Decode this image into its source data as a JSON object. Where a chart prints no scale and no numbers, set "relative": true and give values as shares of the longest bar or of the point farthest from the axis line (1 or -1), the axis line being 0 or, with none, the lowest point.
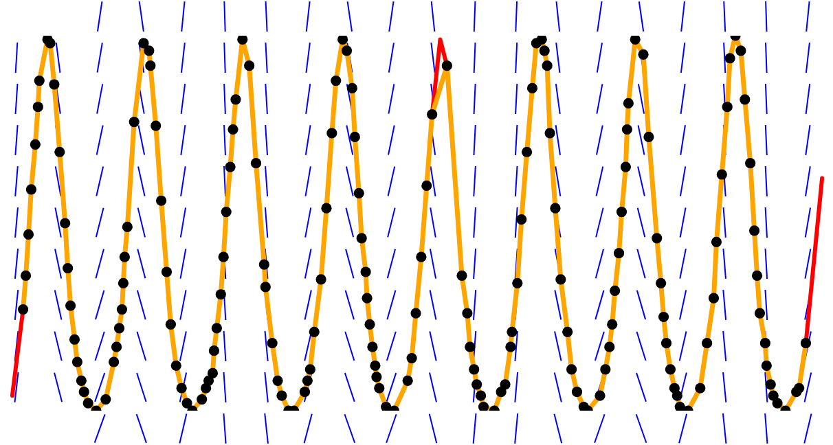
{
  "chart_data": {
    "type": "line",
    "relative": true,
    "categories": [
      null,
      null,
      null,
      null,
      null,
      null,
      null,
      null,
      null,
      null,
      null,
      null,
      null,
      null,
      null,
      null,
      null,
      null,
      null,
      null,
      null,
      null,
      null,
      null,
      null,
      null,
      null,
      null,
      null,
      null,
      null,
      null,
      null,
      null,
      null,
      null,
      null,
      null,
      null,
      null,
      null,
      null,
      null,
      null,
      null,
      null,
      null,
      null,
      null,
      null,
      null,
      null,
      null,
      null,
      null,
      null,
      null,
      null,
      null,
      null,
      null,
      null,
      null,
      null,
      null,
      null,
      null,
      null,
      null,
      null,
      null,
      null,
      null,
      null,
      null,
      null,
      null,
      null,
      null,
      null,
      null,
      null,
      null,
      null,
      null,
      null,
      null,
      null,
      null,
      null,
      null,
      null,
      null,
      null,
      null,
      null,
      null,
      null,
      null,
      null,
      null,
      null,
      null,
      null,
      null,
      null,
      null,
      null,
      null,
      null,
      null,
      null,
      null,
      null,
      null,
      null,
      null,
      null,
      null,
      null,
      null,
      null,
      null,
      null,
      null,
      null,
      null,
      null,
      null,
      null,
      null,
      null,
      null,
      null,
      null,
      null,
      null,
      null,
      null,
      null,
      null,
      null,
      null,
      null,
      null,
      null,
      null,
      null,
      null,
      null,
      null,
      null,
      null,
      null,
      null,
      null,
      null,
      null,
      null,
      null,
      null,
      null,
      null,
      null,
      null,
      null,
      null,
      null,
      null,
      null,
      null,
      null,
      null,
      null,
      null,
      null,
      null,
      null,
      null,
      null,
      null,
      null,
      null,
      null,
      null,
      null,
      null,
      null,
      null,
      null,
      null,
      null,
      null,
      null,
      null,
      null,
      null,
      null,
      null,
      null,
      null,
      null,
      null,
      null,
      null,
      null,
      null,
      null,
      null,
      null,
      null,
      null,
      null,
      null,
      null,
      null,
      null,
      null,
      null,
      null,
      null,
      null,
      null,
      null,
      null,
      null,
      null,
      null,
      null,
      null,
      null,
      null,
      null,
      null,
      null,
      null,
      null,
      null,
      null,
      null,
      null,
      null,
      null,
      null,
      null,
      null,
      null,
      null,
      null,
      null,
      null,
      null,
      null,
      null,
      null,
      null,
      null,
      null,
      null,
      null,
      null,
      null,
      null,
      null,
      null,
      null,
      null,
      null,
      null,
      null,
      null,
      null,
      null,
      null,
      null,
      null,
      null,
      null,
      null,
      null,
      null,
      null,
      null,
      null,
      null,
      null,
      null,
      null,
      null,
      null,
      null,
      null,
      null,
      null,
      null,
      null,
      null,
      null,
      null,
      null,
      null,
      null,
      null,
      null,
      null,
      null,
      null,
      null,
      null,
      null,
      null,
      null,
      null,
      null,
      null,
      null,
      null,
      null,
      null,
      null,
      null,
      null,
      null,
      null,
      null,
      null,
      null,
      null,
      null,
      null,
      null,
      null,
      null,
      null,
      null,
      null,
      null,
      null,
      null,
      null,
      null,
      null,
      null,
      null,
      null,
      null,
      null,
      null,
      null,
      null,
      null,
      null,
      null,
      null,
      null,
      null,
      null,
      null,
      null,
      null,
      null,
      null,
      null,
      null,
      null,
      null,
      null,
      null,
      null,
      null,
      null,
      null,
      null,
      null,
      null,
      null,
      null,
      null,
      null,
      null,
      null,
      null,
      null,
      null,
      null,
      null,
      null,
      null,
      null,
      null,
      null,
      null,
      null,
      null,
      null,
      null,
      null,
      null,
      null,
      null,
      null,
      null,
      null,
      null,
      null,
      null,
      null,
      null,
      null,
      null,
      null,
      null,
      null,
      null,
      null,
      null,
      null,
      null,
      null,
      null,
      null,
      null,
      null,
      null,
      null,
      null,
      null,
      null,
      null,
      null,
      null,
      null,
      null,
      null,
      null,
      null,
      null,
      null,
      null,
      null,
      null,
      null,
      null,
      null,
      null,
      null,
      null,
      null,
      null,
      null,
      null,
      null,
      null,
      null,
      null,
      null,
      null,
      null,
      null,
      null,
      null,
      null,
      null,
      null,
      null,
      null,
      null,
      null,
      null,
      null,
      null,
      null,
      null,
      null,
      null,
      null,
      null,
      null,
      null,
      null,
      null,
      null,
      null,
      null,
      null,
      null,
      null,
      null,
      null,
      null,
      null,
      null,
      null,
      null,
      null,
      null,
      null,
      null,
      null,
      null,
      null,
      null,
      null,
      null,
      null,
      null,
      null,
      null,
      null,
      null,
      null,
      null,
      null,
      null,
      null,
      null,
      null,
      null,
      null,
      null,
      null,
      null,
      null,
      null,
      null,
      null,
      null,
      null,
      null,
      null,
      null,
      null,
      null,
      null,
      null,
      null,
      null,
      null,
      null,
      null,
      null,
      null,
      null,
      null,
      null,
      null,
      null,
      null,
      null,
      null,
      null,
      null,
      null,
      null,
      null,
      null,
      null,
      null,
      null,
      null,
      null,
      null,
      null,
      null,
      null,
      null,
      null,
      null,
      null,
      null,
      null,
      null,
      null,
      null,
      null,
      null,
      null,
      null,
      null,
      null,
      null,
      null,
      null,
      null,
      null,
      null,
      null,
      null,
      null,
      null,
      null,
      null,
      null,
      null,
      null,
      null,
      null,
      null,
      null,
      null,
      null,
      null,
      null,
      null,
      null,
      null,
      null,
      null
    ],
    "series": [
      {
        "type": "line",
        "color": "#ff0000",
        "values": [
          null,
          null,
          null,
          null,
          null,
          0.04,
          null,
          null,
          null,
          null,
          null,
          null,
          null,
          0.27,
          null,
          null,
          null,
          null,
          null,
          null,
          null,
          null,
          null,
          null,
          null,
          null,
          null,
          null,
          null,
          null,
          null,
          null,
          null,
          null,
          null,
          null,
          null,
          null,
          null,
          null,
          null,
          null,
          null,
          null,
          null,
          null,
          null,
          null,
          null,
          null,
          null,
          null,
          null,
          null,
          null,
          null,
          null,
          null,
          null,
          null,
          null,
          null,
          null,
          null,
          null,
          null,
          null,
          null,
          null,
          null,
          null,
          null,
          null,
          null,
          null,
          null,
          null,
          null,
          null,
          null,
          null,
          null,
          null,
          null,
          null,
          null,
          null,
          null,
          null,
          null,
          null,
          null,
          null,
          null,
          null,
          null,
          null,
          null,
          null,
          null,
          null,
          null,
          null,
          null,
          null,
          null,
          null,
          null,
          null,
          null,
          null,
          null,
          null,
          null,
          null,
          null,
          null,
          null,
          null,
          null,
          null,
          null,
          null,
          null,
          null,
          null,
          null,
          null,
          null,
          null,
          null,
          null,
          null,
          null,
          null,
          null,
          null,
          null,
          null,
          null,
          null,
          null,
          null,
          null,
          null,
          null,
          null,
          null,
          null,
          null,
          null,
          null,
          null,
          null,
          null,
          null,
          null,
          null,
          null,
          null,
          null,
          null,
          null,
          null,
          null,
          null,
          null,
          null,
          null,
          null,
          null,
          null,
          null,
          null,
          null,
          null,
          null,
          null,
          null,
          null,
          null,
          null,
          null,
          null,
          null,
          null,
          null,
          null,
          null,
          null,
          null,
          null,
          null,
          null,
          null,
          null,
          null,
          null,
          null,
          null,
          null,
          null,
          null,
          null,
          null,
          null,
          null,
          null,
          null,
          null,
          null,
          null,
          null,
          null,
          null,
          null,
          null,
          null,
          null,
          null,
          null,
          null,
          null,
          null,
          null,
          null,
          null,
          null,
          null,
          null,
          null,
          null,
          null,
          null,
          null,
          null,
          null,
          null,
          null,
          null,
          null,
          null,
          null,
          null,
          null,
          null,
          null,
          null,
          null,
          null,
          null,
          null,
          null,
          null,
          null,
          null,
          null,
          null,
          null,
          null,
          null,
          null,
          null,
          null,
          null,
          null,
          null,
          null,
          null,
          null,
          null,
          null,
          null,
          null,
          null,
          null,
          null,
          null,
          null,
          null,
          null,
          null,
          null,
          null,
          null,
          null,
          null,
          null,
          null,
          null,
          null,
          null,
          null,
          null,
          null,
          null,
          null,
          null,
          null,
          null,
          null,
          null,
          null,
          null,
          null,
          null,
          null,
          null,
          null,
          null,
          null,
          null,
          null,
          null,
          null,
          0.79,
          null,
          null,
          null,
          null,
          null,
          0.99,
          null,
          null,
          null,
          null,
          0.92,
          null,
          null,
          null,
          null,
          null,
          null,
          null,
          null,
          null,
          null,
          null,
          null,
          null,
          null,
          null,
          null,
          null,
          null,
          null,
          null,
          null,
          null,
          null,
          null,
          null,
          null,
          null,
          null,
          null,
          null,
          null,
          null,
          null,
          null,
          null,
          null,
          null,
          null,
          null,
          null,
          null,
          null,
          null,
          null,
          null,
          null,
          null,
          null,
          null,
          null,
          null,
          null,
          null,
          null,
          null,
          null,
          null,
          null,
          null,
          null,
          null,
          null,
          null,
          null,
          null,
          null,
          null,
          null,
          null,
          null,
          null,
          null,
          null,
          null,
          null,
          null,
          null,
          null,
          null,
          null,
          null,
          null,
          null,
          null,
          null,
          null,
          null,
          null,
          null,
          null,
          null,
          null,
          null,
          null,
          null,
          null,
          null,
          null,
          null,
          null,
          null,
          null,
          null,
          null,
          null,
          null,
          null,
          null,
          null,
          null,
          null,
          null,
          null,
          null,
          null,
          null,
          null,
          null,
          null,
          null,
          null,
          null,
          null,
          null,
          null,
          null,
          null,
          null,
          null,
          null,
          null,
          null,
          null,
          null,
          null,
          null,
          null,
          null,
          null,
          null,
          null,
          null,
          null,
          null,
          null,
          null,
          null,
          null,
          null,
          null,
          null,
          null,
          null,
          null,
          null,
          null,
          null,
          null,
          null,
          null,
          null,
          null,
          null,
          null,
          null,
          null,
          null,
          null,
          null,
          null,
          null,
          null,
          null,
          null,
          null,
          null,
          null,
          null,
          null,
          null,
          null,
          null,
          null,
          null,
          null,
          null,
          null,
          null,
          null,
          null,
          null,
          null,
          null,
          null,
          null,
          null,
          null,
          null,
          null,
          null,
          null,
          null,
          null,
          null,
          null,
          null,
          null,
          null,
          null,
          null,
          null,
          null,
          null,
          null,
          null,
          null,
          null,
          null,
          null,
          null,
          null,
          null,
          null,
          null,
          null,
          null,
          null,
          null,
          null,
          null,
          null,
          null,
          null,
          null,
          null,
          null,
          null,
          null,
          null,
          null,
          null,
          null,
          null,
          null,
          null,
          null,
          null,
          null,
          null,
          null,
          null,
          null,
          null,
          null,
          null,
          null,
          null,
          null,
          null,
          null,
          null,
          null,
          null,
          null,
          0.18,
          null,
          null,
          null,
          null,
          null,
          0.4,
          null,
          null,
          null,
          null,
          null,
          0.62,
          null,
          null,
          null,
          null
        ]
      },
      {
        "type": "line",
        "color": "#ffa500",
        "marker": "circle",
        "values": [
          null,
          null,
          null,
          null,
          null,
          null,
          null,
          null,
          null,
          null,
          null,
          null,
          null,
          0.27,
          null,
          0.36,
          null,
          0.47,
          null,
          0.59,
          null,
          null,
          0.71,
          null,
          0.81,
          0.88,
          null,
          null,
          null,
          null,
          null,
          0.99,
          null,
          0.98,
          null,
          null,
          0.87,
          null,
          null,
          null,
          0.69,
          null,
          null,
          null,
          0.5,
          null,
          0.38,
          null,
          0.28,
          null,
          null,
          0.19,
          null,
          0.13,
          null,
          null,
          0.08,
          null,
          0.05,
          null,
          null,
          0.02,
          null,
          null,
          null,
          null,
          null,
          0,
          null,
          null,
          null,
          null,
          null,
          null,
          0.03,
          null,
          null,
          null,
          null,
          null,
          0.13,
          null,
          0.17,
          null,
          0.22,
          null,
          0.27,
          0.34,
          0.41,
          null,
          0.49,
          null,
          null,
          null,
          null,
          0.77,
          null,
          null,
          null,
          null,
          null,
          null,
          0.98,
          null,
          null,
          null,
          0.96,
          0.92,
          null,
          null,
          null,
          0.76,
          null,
          null,
          null,
          0.56,
          null,
          null,
          null,
          0.37,
          null,
          null,
          0.23,
          null,
          null,
          null,
          0.12,
          null,
          null,
          null,
          0.06,
          null,
          null,
          null,
          0.02,
          null,
          null,
          null,
          0,
          null,
          null,
          null,
          null,
          null,
          null,
          0.03,
          null,
          null,
          0.06,
          null,
          0.08,
          null,
          null,
          0.1,
          0.16,
          null,
          0.22,
          null,
          null,
          0.31,
          null,
          0.41,
          null,
          0.53,
          null,
          null,
          0.65,
          null,
          0.75,
          null,
          0.83,
          null,
          null,
          null,
          null,
          0.99,
          null,
          null,
          null,
          null,
          0.92,
          null,
          null,
          null,
          null,
          0.66,
          null,
          null,
          null,
          null,
          null,
          0.39,
          0.33,
          null,
          null,
          null,
          null,
          0.18,
          null,
          null,
          null,
          0.08,
          null,
          null,
          0.04,
          null,
          null,
          null,
          null,
          0,
          null,
          null,
          null,
          0,
          null,
          null,
          null,
          null,
          null,
          null,
          null,
          0.05,
          null,
          0.08,
          null,
          0.11,
          null,
          null,
          0.21,
          null,
          null,
          null,
          null,
          0.35,
          null,
          null,
          null,
          0.54,
          null,
          null,
          null,
          0.74,
          null,
          null,
          0.88,
          null,
          null,
          null,
          null,
          0.99,
          null,
          null,
          0.96,
          null,
          null,
          null,
          0.86,
          null,
          0.73,
          null,
          null,
          0.58,
          null,
          0.46,
          null,
          null,
          0.37,
          0.3,
          null,
          0.23,
          null,
          0.17,
          null,
          0.12,
          0.09,
          null,
          0.06,
          null,
          null,
          null,
          null,
          0.01,
          null,
          null,
          null,
          null,
          null,
          0,
          null,
          null,
          null,
          null,
          null,
          null,
          null,
          null,
          null,
          0.08,
          null,
          null,
          0.14,
          null,
          null,
          0.26,
          null,
          null,
          null,
          0.41,
          null,
          null,
          null,
          0.6,
          null,
          null,
          null,
          0.79,
          null,
          null,
          null,
          null,
          null,
          null,
          null,
          null,
          null,
          null,
          0.92,
          null,
          null,
          null,
          null,
          null,
          null,
          null,
          null,
          null,
          null,
          0.36,
          null,
          null,
          null,
          0.26,
          null,
          0.17,
          null,
          null,
          0.11,
          null,
          0.07,
          null,
          null,
          0.04,
          null,
          0.01,
          null,
          null,
          null,
          null,
          null,
          null,
          null,
          0,
          null,
          null,
          null,
          null,
          0.05,
          null,
          null,
          0.07,
          null,
          null,
          null,
          0.17,
          0.21,
          null,
          null,
          null,
          0.34,
          null,
          null,
          0.51,
          null,
          null,
          null,
          0.69,
          null,
          null,
          null,
          0.86,
          null,
          null,
          0.98,
          null,
          null,
          null,
          0.99,
          null,
          0.96,
          null,
          0.92,
          null,
          0.74,
          null,
          null,
          null,
          0.54,
          null,
          null,
          null,
          0.35,
          null,
          null,
          null,
          null,
          0.21,
          null,
          null,
          0.11,
          null,
          null,
          null,
          0.05,
          null,
          null,
          null,
          null,
          0.01,
          null,
          null,
          0,
          null,
          null,
          null,
          null,
          null,
          null,
          null,
          null,
          0.04,
          null,
          null,
          null,
          0.11,
          null,
          null,
          0.17,
          null,
          0.23,
          null,
          0.32,
          null,
          null,
          0.42,
          null,
          0.53,
          null,
          null,
          0.65,
          0.75,
          0.82,
          null,
          null,
          null,
          null,
          0.99,
          null,
          null,
          null,
          null,
          null,
          0.95,
          null,
          null,
          null,
          0.73,
          null,
          null,
          null,
          null,
          null,
          0.46,
          null,
          null,
          0.34,
          null,
          0.25,
          null,
          0.18,
          null,
          null,
          0.11,
          null,
          null,
          0.06,
          null,
          0.04,
          null,
          0.01,
          null,
          null,
          null,
          null,
          null,
          0,
          null,
          null,
          null,
          null,
          null,
          null,
          null,
          null,
          0.06,
          null,
          null,
          null,
          null,
          0.18,
          null,
          null,
          null,
          null,
          0.3,
          null,
          0.45,
          null,
          null,
          null,
          0.63,
          null,
          null,
          null,
          0.81,
          null,
          0.94,
          null,
          null,
          null,
          1,
          null,
          null,
          null,
          0.96,
          null,
          null,
          0.83,
          null,
          null,
          null,
          0.66,
          null,
          null,
          0.48,
          null,
          0.36,
          null,
          0.26,
          null,
          null,
          null,
          0.18,
          0.12,
          null,
          null,
          0.07,
          null,
          0.04,
          null,
          null,
          0.02,
          null,
          null,
          null,
          null,
          null,
          0,
          null,
          null,
          null,
          null,
          null,
          null,
          null,
          0.05,
          null,
          0.06,
          null,
          null,
          null,
          null,
          0.18,
          null,
          null,
          null,
          null,
          null,
          null,
          null,
          null,
          null,
          null,
          null,
          null,
          null,
          null,
          null,
          null
        ],
        "colors": [
          null,
          null,
          null,
          null,
          null,
          null,
          null,
          null,
          null,
          null,
          null,
          null,
          null,
          "#000000",
          null,
          "#000000",
          null,
          "#000000",
          null,
          "#000000",
          null,
          null,
          "#000000",
          null,
          "#000000",
          "#000000",
          null,
          null,
          null,
          null,
          null,
          "#000000",
          null,
          "#000000",
          null,
          null,
          "#000000",
          null,
          null,
          null,
          "#000000",
          null,
          null,
          null,
          "#000000",
          null,
          "#000000",
          null,
          "#000000",
          null,
          null,
          "#000000",
          null,
          "#000000",
          null,
          null,
          "#000000",
          null,
          "#000000",
          null,
          null,
          "#000000",
          null,
          null,
          null,
          null,
          null,
          "#000000",
          null,
          null,
          null,
          null,
          null,
          null,
          "#000000",
          null,
          null,
          null,
          null,
          null,
          "#000000",
          null,
          "#000000",
          null,
          "#000000",
          null,
          "#000000",
          "#000000",
          "#000000",
          null,
          "#000000",
          null,
          null,
          null,
          null,
          "#000000",
          null,
          null,
          null,
          null,
          null,
          null,
          "#000000",
          null,
          null,
          null,
          "#000000",
          "#000000",
          null,
          null,
          null,
          "#000000",
          null,
          null,
          null,
          "#000000",
          null,
          null,
          null,
          "#000000",
          null,
          null,
          "#000000",
          null,
          null,
          null,
          "#000000",
          null,
          null,
          null,
          "#000000",
          null,
          null,
          null,
          "#000000",
          null,
          null,
          null,
          "#000000",
          null,
          null,
          null,
          null,
          null,
          null,
          "#000000",
          null,
          null,
          "#000000",
          null,
          "#000000",
          null,
          null,
          "#000000",
          "#000000",
          null,
          "#000000",
          null,
          null,
          "#000000",
          null,
          "#000000",
          null,
          "#000000",
          null,
          null,
          "#000000",
          null,
          "#000000",
          null,
          "#000000",
          null,
          null,
          null,
          null,
          "#000000",
          null,
          null,
          null,
          null,
          "#000000",
          null,
          null,
          null,
          null,
          "#000000",
          null,
          null,
          null,
          null,
          null,
          "#000000",
          "#000000",
          null,
          null,
          null,
          null,
          "#000000",
          null,
          null,
          null,
          "#000000",
          null,
          null,
          "#000000",
          null,
          null,
          null,
          null,
          "#000000",
          null,
          null,
          null,
          "#000000",
          null,
          null,
          null,
          null,
          null,
          null,
          null,
          "#000000",
          null,
          "#000000",
          null,
          "#000000",
          null,
          null,
          "#000000",
          null,
          null,
          null,
          null,
          "#000000",
          null,
          null,
          null,
          "#000000",
          null,
          null,
          null,
          "#000000",
          null,
          null,
          "#000000",
          null,
          null,
          null,
          null,
          "#000000",
          null,
          null,
          "#000000",
          null,
          null,
          null,
          "#000000",
          null,
          "#000000",
          null,
          null,
          "#000000",
          null,
          "#000000",
          null,
          null,
          "#000000",
          "#000000",
          null,
          "#000000",
          null,
          "#000000",
          null,
          "#000000",
          "#000000",
          null,
          "#000000",
          null,
          null,
          null,
          null,
          "#000000",
          null,
          null,
          null,
          null,
          null,
          "#000000",
          null,
          null,
          null,
          null,
          null,
          null,
          null,
          null,
          null,
          "#000000",
          null,
          null,
          "#000000",
          null,
          null,
          "#000000",
          null,
          null,
          null,
          "#000000",
          null,
          null,
          null,
          "#000000",
          null,
          null,
          null,
          "#000000",
          null,
          null,
          null,
          null,
          null,
          null,
          null,
          null,
          null,
          null,
          "#000000",
          null,
          null,
          null,
          null,
          null,
          null,
          null,
          null,
          null,
          null,
          "#000000",
          null,
          null,
          null,
          "#000000",
          null,
          "#000000",
          null,
          null,
          "#000000",
          null,
          "#000000",
          null,
          null,
          "#000000",
          null,
          "#000000",
          null,
          null,
          null,
          null,
          null,
          null,
          null,
          "#000000",
          null,
          null,
          null,
          null,
          "#000000",
          null,
          null,
          "#000000",
          null,
          null,
          null,
          "#000000",
          "#000000",
          null,
          null,
          null,
          "#000000",
          null,
          null,
          "#000000",
          null,
          null,
          null,
          "#000000",
          null,
          null,
          null,
          "#000000",
          null,
          null,
          "#000000",
          null,
          null,
          null,
          "#000000",
          null,
          "#000000",
          null,
          "#000000",
          null,
          "#000000",
          null,
          null,
          null,
          "#000000",
          null,
          null,
          null,
          "#000000",
          null,
          null,
          null,
          null,
          "#000000",
          null,
          null,
          "#000000",
          null,
          null,
          null,
          "#000000",
          null,
          null,
          null,
          null,
          "#000000",
          null,
          null,
          "#000000",
          null,
          null,
          null,
          null,
          null,
          null,
          null,
          null,
          "#000000",
          null,
          null,
          null,
          "#000000",
          null,
          null,
          "#000000",
          null,
          "#000000",
          null,
          "#000000",
          null,
          null,
          "#000000",
          null,
          "#000000",
          null,
          null,
          "#000000",
          "#000000",
          "#000000",
          null,
          null,
          null,
          null,
          "#000000",
          null,
          null,
          null,
          null,
          null,
          "#000000",
          null,
          null,
          null,
          "#000000",
          null,
          null,
          null,
          null,
          null,
          "#000000",
          null,
          null,
          "#000000",
          null,
          "#000000",
          null,
          "#000000",
          null,
          null,
          "#000000",
          null,
          null,
          "#000000",
          null,
          "#000000",
          null,
          "#000000",
          null,
          null,
          null,
          null,
          null,
          "#000000",
          null,
          null,
          null,
          null,
          null,
          null,
          null,
          null,
          "#000000",
          null,
          null,
          null,
          null,
          "#000000",
          null,
          null,
          null,
          null,
          "#000000",
          null,
          "#000000",
          null,
          null,
          null,
          "#000000",
          null,
          null,
          null,
          "#000000",
          null,
          "#000000",
          null,
          null,
          null,
          "#000000",
          null,
          null,
          null,
          "#000000",
          null,
          null,
          "#000000",
          null,
          null,
          null,
          "#000000",
          null,
          null,
          "#000000",
          null,
          "#000000",
          null,
          "#000000",
          null,
          null,
          null,
          "#000000",
          "#000000",
          null,
          null,
          "#000000",
          null,
          "#000000",
          null,
          null,
          "#000000",
          null,
          null,
          null,
          null,
          null,
          "#000000",
          null,
          null,
          null,
          null,
          null,
          null,
          null,
          "#000000",
          null,
          "#000000",
          null,
          null,
          null,
          null,
          "#000000",
          null,
          null,
          null,
          null,
          null,
          null,
          null,
          null,
          null,
          null,
          null,
          null,
          null,
          null,
          null,
          null
        ]
      }
    ]
  }
}
